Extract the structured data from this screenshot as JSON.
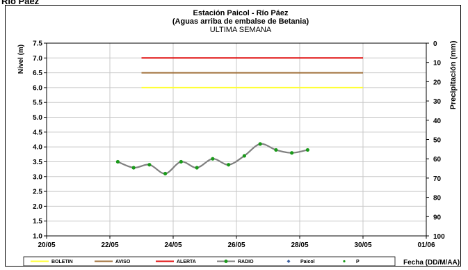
{
  "top_cut_text": "Río Páez",
  "chart_data": {
    "type": "line",
    "title": "Estación Paicol - Río Páez",
    "subtitle": "(Aguas arriba de embalse de Betania)",
    "period": "ULTIMA SEMANA",
    "ylabel": "Nivel (m)",
    "y2label": "Precipitación (mm)",
    "xlabel": "Fecha (DD/M/AA)",
    "ylim": [
      1.0,
      7.5
    ],
    "y2lim": [
      0,
      100
    ],
    "y2_inverted": true,
    "xlim": [
      "2022-05-20",
      "2022-06-01"
    ],
    "x_tick_labels": [
      "20/05",
      "22/05",
      "24/05",
      "26/05",
      "28/05",
      "30/05",
      "01/06"
    ],
    "y_tick_labels": [
      "1.0",
      "1.5",
      "2.0",
      "2.5",
      "3.0",
      "3.5",
      "4.0",
      "4.5",
      "5.0",
      "5.5",
      "6.0",
      "6.5",
      "7.0",
      "7.5"
    ],
    "y2_tick_labels": [
      "0",
      "10",
      "20",
      "30",
      "40",
      "50",
      "60",
      "70",
      "80",
      "90",
      "100"
    ],
    "grid": true,
    "thresholds": [
      {
        "name": "BOLETIN",
        "value": 6.0,
        "color": "#ffff33",
        "x_start": "2022-05-23",
        "x_end": "2022-05-30"
      },
      {
        "name": "AVISO",
        "value": 6.5,
        "color": "#a0703a",
        "x_start": "2022-05-23",
        "x_end": "2022-05-30"
      },
      {
        "name": "ALERTA",
        "value": 7.0,
        "color": "#e01010",
        "x_start": "2022-05-23",
        "x_end": "2022-05-30"
      }
    ],
    "series": [
      {
        "name": "RADIO",
        "line_color": "#808080",
        "marker_color": "#1a9a1a",
        "points": [
          {
            "x": "2022-05-22T06:00",
            "y": 3.5
          },
          {
            "x": "2022-05-22T18:00",
            "y": 3.3
          },
          {
            "x": "2022-05-23T06:00",
            "y": 3.4
          },
          {
            "x": "2022-05-23T18:00",
            "y": 3.1
          },
          {
            "x": "2022-05-24T06:00",
            "y": 3.5
          },
          {
            "x": "2022-05-24T18:00",
            "y": 3.3
          },
          {
            "x": "2022-05-25T06:00",
            "y": 3.6
          },
          {
            "x": "2022-05-25T18:00",
            "y": 3.4
          },
          {
            "x": "2022-05-26T06:00",
            "y": 3.7
          },
          {
            "x": "2022-05-26T18:00",
            "y": 4.1
          },
          {
            "x": "2022-05-27T06:00",
            "y": 3.9
          },
          {
            "x": "2022-05-27T18:00",
            "y": 3.8
          },
          {
            "x": "2022-05-28T06:00",
            "y": 3.9
          }
        ]
      }
    ],
    "legend": [
      {
        "name": "BOLETIN",
        "kind": "line",
        "color": "#ffff33"
      },
      {
        "name": "AVISO",
        "kind": "line",
        "color": "#a0703a"
      },
      {
        "name": "ALERTA",
        "kind": "line",
        "color": "#e01010"
      },
      {
        "name": "RADIO",
        "kind": "line-marker",
        "color": "#808080",
        "marker": "#1a9a1a"
      },
      {
        "name": "Paicol",
        "kind": "diamond",
        "color": "#3a5fa0"
      },
      {
        "name": "P",
        "kind": "dot",
        "color": "#1a9a1a"
      }
    ],
    "legend_position": "bottom"
  }
}
